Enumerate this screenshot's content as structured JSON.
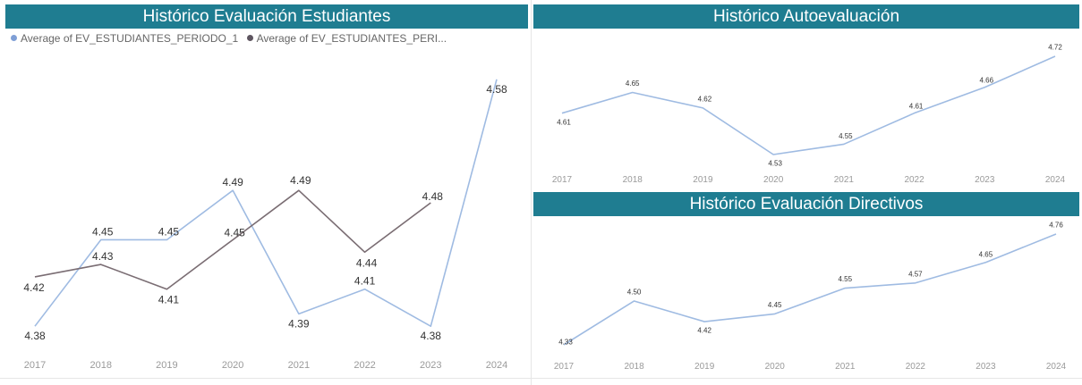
{
  "colors": {
    "header_bg": "#1f7d91",
    "series1": "#9fbbe2",
    "series2": "#7a6d73",
    "tick": "#9a9a9a",
    "label": "#333333"
  },
  "panels": {
    "estudiantes": {
      "title": "Histórico Evaluación Estudiantes",
      "legend": [
        {
          "name": "Average of EV_ESTUDIANTES_PERIODO_1",
          "color": "#7f9fd6"
        },
        {
          "name": "Average of EV_ESTUDIANTES_PERI...",
          "color": "#5e5560"
        }
      ]
    },
    "autoevaluacion": {
      "title": "Histórico Autoevaluación"
    },
    "directivos": {
      "title": "Histórico Evaluación Directivos"
    }
  },
  "chart_data": [
    {
      "type": "line",
      "title": "Histórico Evaluación Estudiantes",
      "categories": [
        "2017",
        "2018",
        "2019",
        "2020",
        "2021",
        "2022",
        "2023",
        "2024"
      ],
      "series": [
        {
          "name": "Average of EV_ESTUDIANTES_PERIODO_1",
          "values": [
            4.38,
            4.45,
            4.45,
            4.49,
            4.39,
            4.41,
            4.38,
            4.58
          ]
        },
        {
          "name": "Average of EV_ESTUDIANTES_PERI...",
          "values": [
            4.42,
            4.43,
            4.41,
            4.45,
            4.49,
            4.44,
            4.48,
            null
          ]
        }
      ],
      "ylim": [
        4.37,
        4.59
      ],
      "legend": "top-left"
    },
    {
      "type": "line",
      "title": "Histórico Autoevaluación",
      "categories": [
        "2017",
        "2018",
        "2019",
        "2020",
        "2021",
        "2022",
        "2023",
        "2024"
      ],
      "series": [
        {
          "values": [
            4.61,
            4.65,
            4.62,
            4.53,
            4.55,
            4.61,
            4.66,
            4.72
          ]
        }
      ],
      "ylim": [
        4.53,
        4.72
      ]
    },
    {
      "type": "line",
      "title": "Histórico Evaluación Directivos",
      "categories": [
        "2017",
        "2018",
        "2019",
        "2020",
        "2021",
        "2022",
        "2023",
        "2024"
      ],
      "series": [
        {
          "values": [
            4.33,
            4.5,
            4.42,
            4.45,
            4.55,
            4.57,
            4.65,
            4.76
          ]
        }
      ],
      "ylim": [
        4.33,
        4.76
      ]
    }
  ]
}
